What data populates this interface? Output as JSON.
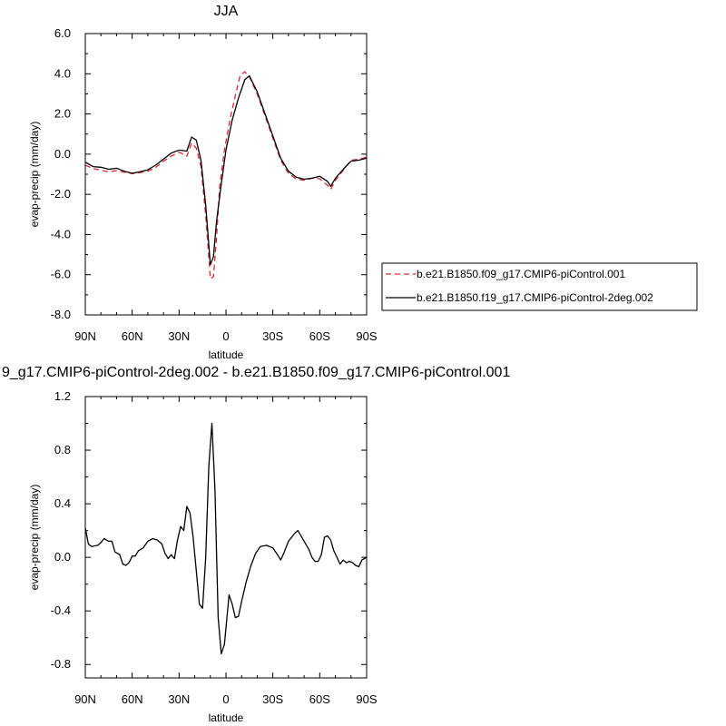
{
  "chart_data": [
    {
      "type": "line",
      "title": "JJA",
      "xlabel": "latitude",
      "ylabel": "evap-precip (mm/day)",
      "x_tick_labels": [
        "90N",
        "60N",
        "30N",
        "0",
        "30S",
        "60S",
        "90S"
      ],
      "x_tick_values": [
        90,
        60,
        30,
        0,
        -30,
        -60,
        -90
      ],
      "xlim": [
        90,
        -90
      ],
      "y_tick_labels": [
        "6.0",
        "4.0",
        "2.0",
        "0.0",
        "-2.0",
        "-4.0",
        "-6.0",
        "-8.0"
      ],
      "y_tick_values": [
        6,
        4,
        2,
        0,
        -2,
        -4,
        -6,
        -8
      ],
      "ylim": [
        -8,
        6
      ],
      "legend_position": "right",
      "series": [
        {
          "name": "b.e21.B1850.f09_g17.CMIP6-piControl.001",
          "color": "#e0242f",
          "style": "dashed",
          "points": [
            [
              90,
              -0.55
            ],
            [
              85,
              -0.72
            ],
            [
              80,
              -0.8
            ],
            [
              75,
              -0.88
            ],
            [
              70,
              -0.82
            ],
            [
              65,
              -0.9
            ],
            [
              60,
              -0.97
            ],
            [
              55,
              -0.92
            ],
            [
              50,
              -0.85
            ],
            [
              45,
              -0.66
            ],
            [
              40,
              -0.35
            ],
            [
              35,
              -0.1
            ],
            [
              30,
              0.1
            ],
            [
              25,
              -0.1
            ],
            [
              22,
              0.55
            ],
            [
              19,
              0.3
            ],
            [
              16,
              -0.6
            ],
            [
              13,
              -3.0
            ],
            [
              10,
              -6.2
            ],
            [
              8,
              -6.1
            ],
            [
              6,
              -4.1
            ],
            [
              4,
              -1.6
            ],
            [
              1,
              0.2
            ],
            [
              -3,
              1.9
            ],
            [
              -6,
              2.9
            ],
            [
              -9,
              3.9
            ],
            [
              -12,
              4.1
            ],
            [
              -15,
              3.85
            ],
            [
              -20,
              3.0
            ],
            [
              -25,
              1.9
            ],
            [
              -30,
              0.8
            ],
            [
              -35,
              -0.3
            ],
            [
              -40,
              -0.95
            ],
            [
              -45,
              -1.25
            ],
            [
              -50,
              -1.3
            ],
            [
              -55,
              -1.2
            ],
            [
              -60,
              -1.22
            ],
            [
              -65,
              -1.55
            ],
            [
              -67,
              -1.75
            ],
            [
              -70,
              -1.3
            ],
            [
              -75,
              -0.8
            ],
            [
              -80,
              -0.3
            ],
            [
              -85,
              -0.25
            ],
            [
              -90,
              -0.15
            ]
          ]
        },
        {
          "name": "b.e21.B1850.f19_g17.CMIP6-piControl-2deg.002",
          "color": "#000000",
          "style": "solid",
          "points": [
            [
              90,
              -0.4
            ],
            [
              85,
              -0.62
            ],
            [
              80,
              -0.65
            ],
            [
              75,
              -0.75
            ],
            [
              70,
              -0.7
            ],
            [
              65,
              -0.85
            ],
            [
              60,
              -0.95
            ],
            [
              55,
              -0.88
            ],
            [
              50,
              -0.78
            ],
            [
              45,
              -0.55
            ],
            [
              40,
              -0.25
            ],
            [
              35,
              0.05
            ],
            [
              30,
              0.2
            ],
            [
              25,
              0.15
            ],
            [
              22,
              0.85
            ],
            [
              19,
              0.7
            ],
            [
              16,
              -0.3
            ],
            [
              13,
              -2.5
            ],
            [
              10,
              -5.5
            ],
            [
              8,
              -5.1
            ],
            [
              6,
              -3.3
            ],
            [
              3,
              -1.5
            ],
            [
              0,
              0.2
            ],
            [
              -4,
              1.7
            ],
            [
              -8,
              2.8
            ],
            [
              -12,
              3.7
            ],
            [
              -15,
              3.9
            ],
            [
              -20,
              3.1
            ],
            [
              -25,
              2.0
            ],
            [
              -30,
              0.9
            ],
            [
              -35,
              -0.2
            ],
            [
              -40,
              -0.85
            ],
            [
              -45,
              -1.15
            ],
            [
              -50,
              -1.25
            ],
            [
              -55,
              -1.2
            ],
            [
              -60,
              -1.1
            ],
            [
              -65,
              -1.35
            ],
            [
              -67,
              -1.6
            ],
            [
              -70,
              -1.2
            ],
            [
              -75,
              -0.75
            ],
            [
              -80,
              -0.35
            ],
            [
              -85,
              -0.3
            ],
            [
              -90,
              -0.2
            ]
          ]
        }
      ]
    },
    {
      "type": "line",
      "title": "9_g17.CMIP6-piControl-2deg.002 - b.e21.B1850.f09_g17.CMIP6-piControl.001",
      "xlabel": "latitude",
      "ylabel": "evap-precip (mm/day)",
      "x_tick_labels": [
        "90N",
        "60N",
        "30N",
        "0",
        "30S",
        "60S",
        "90S"
      ],
      "x_tick_values": [
        90,
        60,
        30,
        0,
        -30,
        -60,
        -90
      ],
      "xlim": [
        90,
        -90
      ],
      "y_tick_labels": [
        "1.2",
        "0.8",
        "0.4",
        "0.0",
        "-0.4",
        "-0.8"
      ],
      "y_tick_values": [
        1.2,
        0.8,
        0.4,
        0.0,
        -0.4,
        -0.8
      ],
      "ylim": [
        -0.9,
        1.2
      ],
      "series": [
        {
          "color": "#000000",
          "style": "solid",
          "points": [
            [
              90,
              0.22
            ],
            [
              88,
              0.1
            ],
            [
              86,
              0.08
            ],
            [
              82,
              0.09
            ],
            [
              80,
              0.11
            ],
            [
              78,
              0.14
            ],
            [
              75,
              0.12
            ],
            [
              73,
              0.12
            ],
            [
              71,
              0.04
            ],
            [
              68,
              0.02
            ],
            [
              66,
              -0.05
            ],
            [
              64,
              -0.06
            ],
            [
              62,
              -0.04
            ],
            [
              60,
              0.01
            ],
            [
              58,
              0.01
            ],
            [
              56,
              0.05
            ],
            [
              53,
              0.07
            ],
            [
              50,
              0.12
            ],
            [
              47,
              0.14
            ],
            [
              44,
              0.13
            ],
            [
              41,
              0.1
            ],
            [
              39,
              0.03
            ],
            [
              37,
              -0.01
            ],
            [
              35,
              0.02
            ],
            [
              33,
              -0.01
            ],
            [
              31,
              0.13
            ],
            [
              29,
              0.23
            ],
            [
              27,
              0.2
            ],
            [
              25,
              0.38
            ],
            [
              23,
              0.33
            ],
            [
              21,
              0.15
            ],
            [
              19,
              -0.1
            ],
            [
              17,
              -0.35
            ],
            [
              15,
              -0.38
            ],
            [
              13,
              -0.01
            ],
            [
              11,
              0.68
            ],
            [
              9,
              1.0
            ],
            [
              7,
              0.5
            ],
            [
              5,
              -0.45
            ],
            [
              3,
              -0.72
            ],
            [
              1,
              -0.65
            ],
            [
              -2,
              -0.28
            ],
            [
              -4,
              -0.35
            ],
            [
              -6,
              -0.45
            ],
            [
              -8,
              -0.44
            ],
            [
              -10,
              -0.33
            ],
            [
              -13,
              -0.18
            ],
            [
              -16,
              -0.06
            ],
            [
              -19,
              0.03
            ],
            [
              -22,
              0.08
            ],
            [
              -26,
              0.09
            ],
            [
              -30,
              0.07
            ],
            [
              -33,
              0.02
            ],
            [
              -35,
              -0.02
            ],
            [
              -37,
              0.03
            ],
            [
              -40,
              0.12
            ],
            [
              -44,
              0.18
            ],
            [
              -46,
              0.2
            ],
            [
              -48,
              0.16
            ],
            [
              -50,
              0.12
            ],
            [
              -53,
              0.06
            ],
            [
              -55,
              0.0
            ],
            [
              -57,
              -0.03
            ],
            [
              -59,
              -0.03
            ],
            [
              -61,
              0.02
            ],
            [
              -63,
              0.15
            ],
            [
              -65,
              0.16
            ],
            [
              -67,
              0.13
            ],
            [
              -69,
              0.05
            ],
            [
              -71,
              0.0
            ],
            [
              -73,
              -0.05
            ],
            [
              -75,
              -0.02
            ],
            [
              -77,
              -0.04
            ],
            [
              -79,
              -0.03
            ],
            [
              -81,
              -0.04
            ],
            [
              -83,
              -0.06
            ],
            [
              -85,
              -0.07
            ],
            [
              -87,
              -0.02
            ],
            [
              -90,
              0.0
            ]
          ]
        }
      ]
    }
  ]
}
